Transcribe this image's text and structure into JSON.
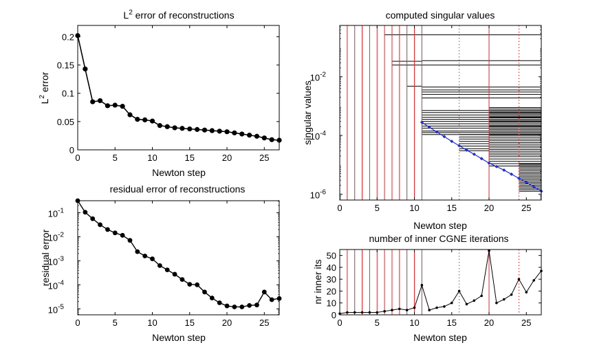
{
  "colors": {
    "axis": "#000000",
    "data": "#000000",
    "marker": "#000000",
    "red": "#e8262a",
    "blue": "#1f2fd8",
    "bars": "#000000"
  },
  "chart_data": [
    {
      "id": "l2",
      "type": "line",
      "title_main": "L",
      "title_sup": "2",
      "title_rest": " error of reconstructions",
      "xlabel": "Newton step",
      "ylabel_main": "L",
      "ylabel_sup": "2",
      "ylabel_rest": " error",
      "xlim": [
        0,
        27
      ],
      "ylim": [
        0,
        0.22
      ],
      "yscale": "linear",
      "xticks": [
        0,
        5,
        10,
        15,
        20,
        25
      ],
      "yticks": [
        0,
        0.05,
        0.1,
        0.15,
        0.2
      ],
      "ytick_labels": [
        "0",
        "0.05",
        "0.1",
        "0.15",
        "0.2"
      ],
      "x": [
        0,
        1,
        2,
        3,
        4,
        5,
        6,
        7,
        8,
        9,
        10,
        11,
        12,
        13,
        14,
        15,
        16,
        17,
        18,
        19,
        20,
        21,
        22,
        23,
        24,
        25,
        26,
        27
      ],
      "y": [
        0.202,
        0.143,
        0.085,
        0.087,
        0.078,
        0.079,
        0.077,
        0.062,
        0.054,
        0.053,
        0.051,
        0.043,
        0.041,
        0.039,
        0.038,
        0.037,
        0.036,
        0.035,
        0.034,
        0.033,
        0.032,
        0.03,
        0.028,
        0.026,
        0.024,
        0.021,
        0.018,
        0.017
      ]
    },
    {
      "id": "sv",
      "type": "scatter",
      "title": "computed singular values",
      "xlabel": "Newton step",
      "ylabel": "singular values",
      "xlim": [
        0,
        27
      ],
      "yscale": "log",
      "ylim_log10": [
        -6.2,
        -0.25
      ],
      "xticks": [
        0,
        5,
        10,
        15,
        20,
        25
      ],
      "yticks_log10": [
        -2,
        -4,
        -6
      ],
      "ytick_labels": [
        {
          "base": "10",
          "exp": "-2"
        },
        {
          "base": "10",
          "exp": "-4"
        },
        {
          "base": "10",
          "exp": "-6"
        }
      ],
      "red_lines_solid": [
        1,
        2,
        3,
        4,
        5,
        6,
        7,
        8,
        9,
        10,
        11,
        20
      ],
      "red_lines_dotted": [
        16,
        24
      ],
      "blue_x": [
        11,
        12,
        13,
        14,
        15,
        16,
        17,
        18,
        19,
        20,
        21,
        22,
        23,
        24,
        25,
        26,
        27
      ],
      "blue_y_log10": [
        -3.55,
        -3.72,
        -3.88,
        -4.04,
        -4.2,
        -4.35,
        -4.5,
        -4.64,
        -4.79,
        -4.94,
        -5.06,
        -5.18,
        -5.32,
        -5.46,
        -5.6,
        -5.75,
        -5.9
      ],
      "bars": [
        {
          "x0": 6,
          "x1": 11,
          "y_log10": [
            -0.57
          ]
        },
        {
          "x0": 11,
          "x1": 27,
          "y_log10": [
            -0.57,
            -1.45,
            -1.6,
            -2.35,
            -2.45,
            -2.52,
            -2.6,
            -2.72,
            -3.15,
            -3.22,
            -3.3,
            -3.38,
            -3.45,
            -3.52,
            -3.6,
            -3.68,
            -3.75,
            -3.85,
            -3.9,
            -3.97
          ]
        },
        {
          "x0": 7,
          "x1": 11,
          "y_log10": [
            -1.47,
            -1.6
          ]
        },
        {
          "x0": 9,
          "x1": 11,
          "y_log10": [
            -2.32
          ]
        },
        {
          "x0": 16,
          "x1": 20,
          "y_log10": [
            -3.97,
            -4.05,
            -4.12,
            -4.2,
            -4.28,
            -4.36,
            -4.45,
            -4.52
          ]
        },
        {
          "x0": 20,
          "x1": 27,
          "y_log10": [
            -3.05,
            -3.1,
            -3.15,
            -3.2,
            -3.25,
            -3.3,
            -3.35,
            -3.4,
            -3.45,
            -3.5,
            -3.55,
            -3.6,
            -3.65,
            -3.7,
            -3.75,
            -3.8,
            -3.85,
            -3.9,
            -3.95,
            -4.0,
            -4.06,
            -4.12,
            -4.18,
            -4.24,
            -4.3,
            -4.36,
            -4.42,
            -4.48,
            -4.54,
            -4.6,
            -4.66,
            -4.72,
            -4.8,
            -4.88,
            -4.96,
            -5.04
          ]
        },
        {
          "x0": 24,
          "x1": 27,
          "y_log10": [
            -4.95,
            -5.0,
            -5.05,
            -5.1,
            -5.15,
            -5.2,
            -5.25,
            -5.3,
            -5.35,
            -5.4,
            -5.45,
            -5.5,
            -5.55,
            -5.6,
            -5.65,
            -5.7,
            -5.75,
            -5.8,
            -5.85,
            -5.9
          ]
        }
      ]
    },
    {
      "id": "res",
      "type": "line",
      "title": "residual error of reconstructions",
      "xlabel": "Newton step",
      "ylabel": "residual error",
      "xlim": [
        0,
        27
      ],
      "yscale": "log",
      "ylim_log10": [
        -5.25,
        -0.5
      ],
      "xticks": [
        0,
        5,
        10,
        15,
        20,
        25
      ],
      "yticks_log10": [
        -1,
        -2,
        -3,
        -4,
        -5
      ],
      "ytick_labels": [
        {
          "base": "10",
          "exp": "-1"
        },
        {
          "base": "10",
          "exp": "-2"
        },
        {
          "base": "10",
          "exp": "-3"
        },
        {
          "base": "10",
          "exp": "-4"
        },
        {
          "base": "10",
          "exp": "-5"
        }
      ],
      "x": [
        0,
        1,
        2,
        3,
        4,
        5,
        6,
        7,
        8,
        9,
        10,
        11,
        12,
        13,
        14,
        15,
        16,
        17,
        18,
        19,
        20,
        21,
        22,
        23,
        24,
        25,
        26,
        27
      ],
      "y_log10": [
        -0.5,
        -0.98,
        -1.25,
        -1.5,
        -1.7,
        -1.84,
        -1.94,
        -2.15,
        -2.62,
        -2.8,
        -2.92,
        -3.2,
        -3.38,
        -3.56,
        -3.78,
        -3.98,
        -4.0,
        -4.3,
        -4.55,
        -4.75,
        -4.88,
        -4.92,
        -4.92,
        -4.86,
        -4.84,
        -4.3,
        -4.62,
        -4.57
      ]
    },
    {
      "id": "cgne",
      "type": "line",
      "title": "number of inner CGNE iterations",
      "xlabel": "Newton step",
      "ylabel": "nr inner its",
      "xlim": [
        0,
        27
      ],
      "ylim": [
        0,
        55
      ],
      "yscale": "linear",
      "xticks": [
        0,
        5,
        10,
        15,
        20,
        25
      ],
      "yticks": [
        0,
        10,
        20,
        30,
        40,
        50
      ],
      "ytick_labels": [
        "0",
        "10",
        "20",
        "30",
        "40",
        "50"
      ],
      "red_lines_solid": [
        1,
        2,
        3,
        4,
        5,
        6,
        7,
        8,
        9,
        10,
        11,
        20
      ],
      "red_lines_dotted": [
        16,
        24
      ],
      "x": [
        0,
        1,
        2,
        3,
        4,
        5,
        6,
        7,
        8,
        9,
        10,
        11,
        12,
        13,
        14,
        15,
        16,
        17,
        18,
        19,
        20,
        21,
        22,
        23,
        24,
        25,
        26,
        27
      ],
      "y": [
        1,
        2,
        2,
        2,
        2,
        2,
        3,
        4,
        5,
        4,
        6,
        25,
        4,
        6,
        7,
        10,
        20,
        9,
        12,
        16,
        54,
        10,
        13,
        17,
        30,
        19,
        29,
        37
      ]
    }
  ]
}
